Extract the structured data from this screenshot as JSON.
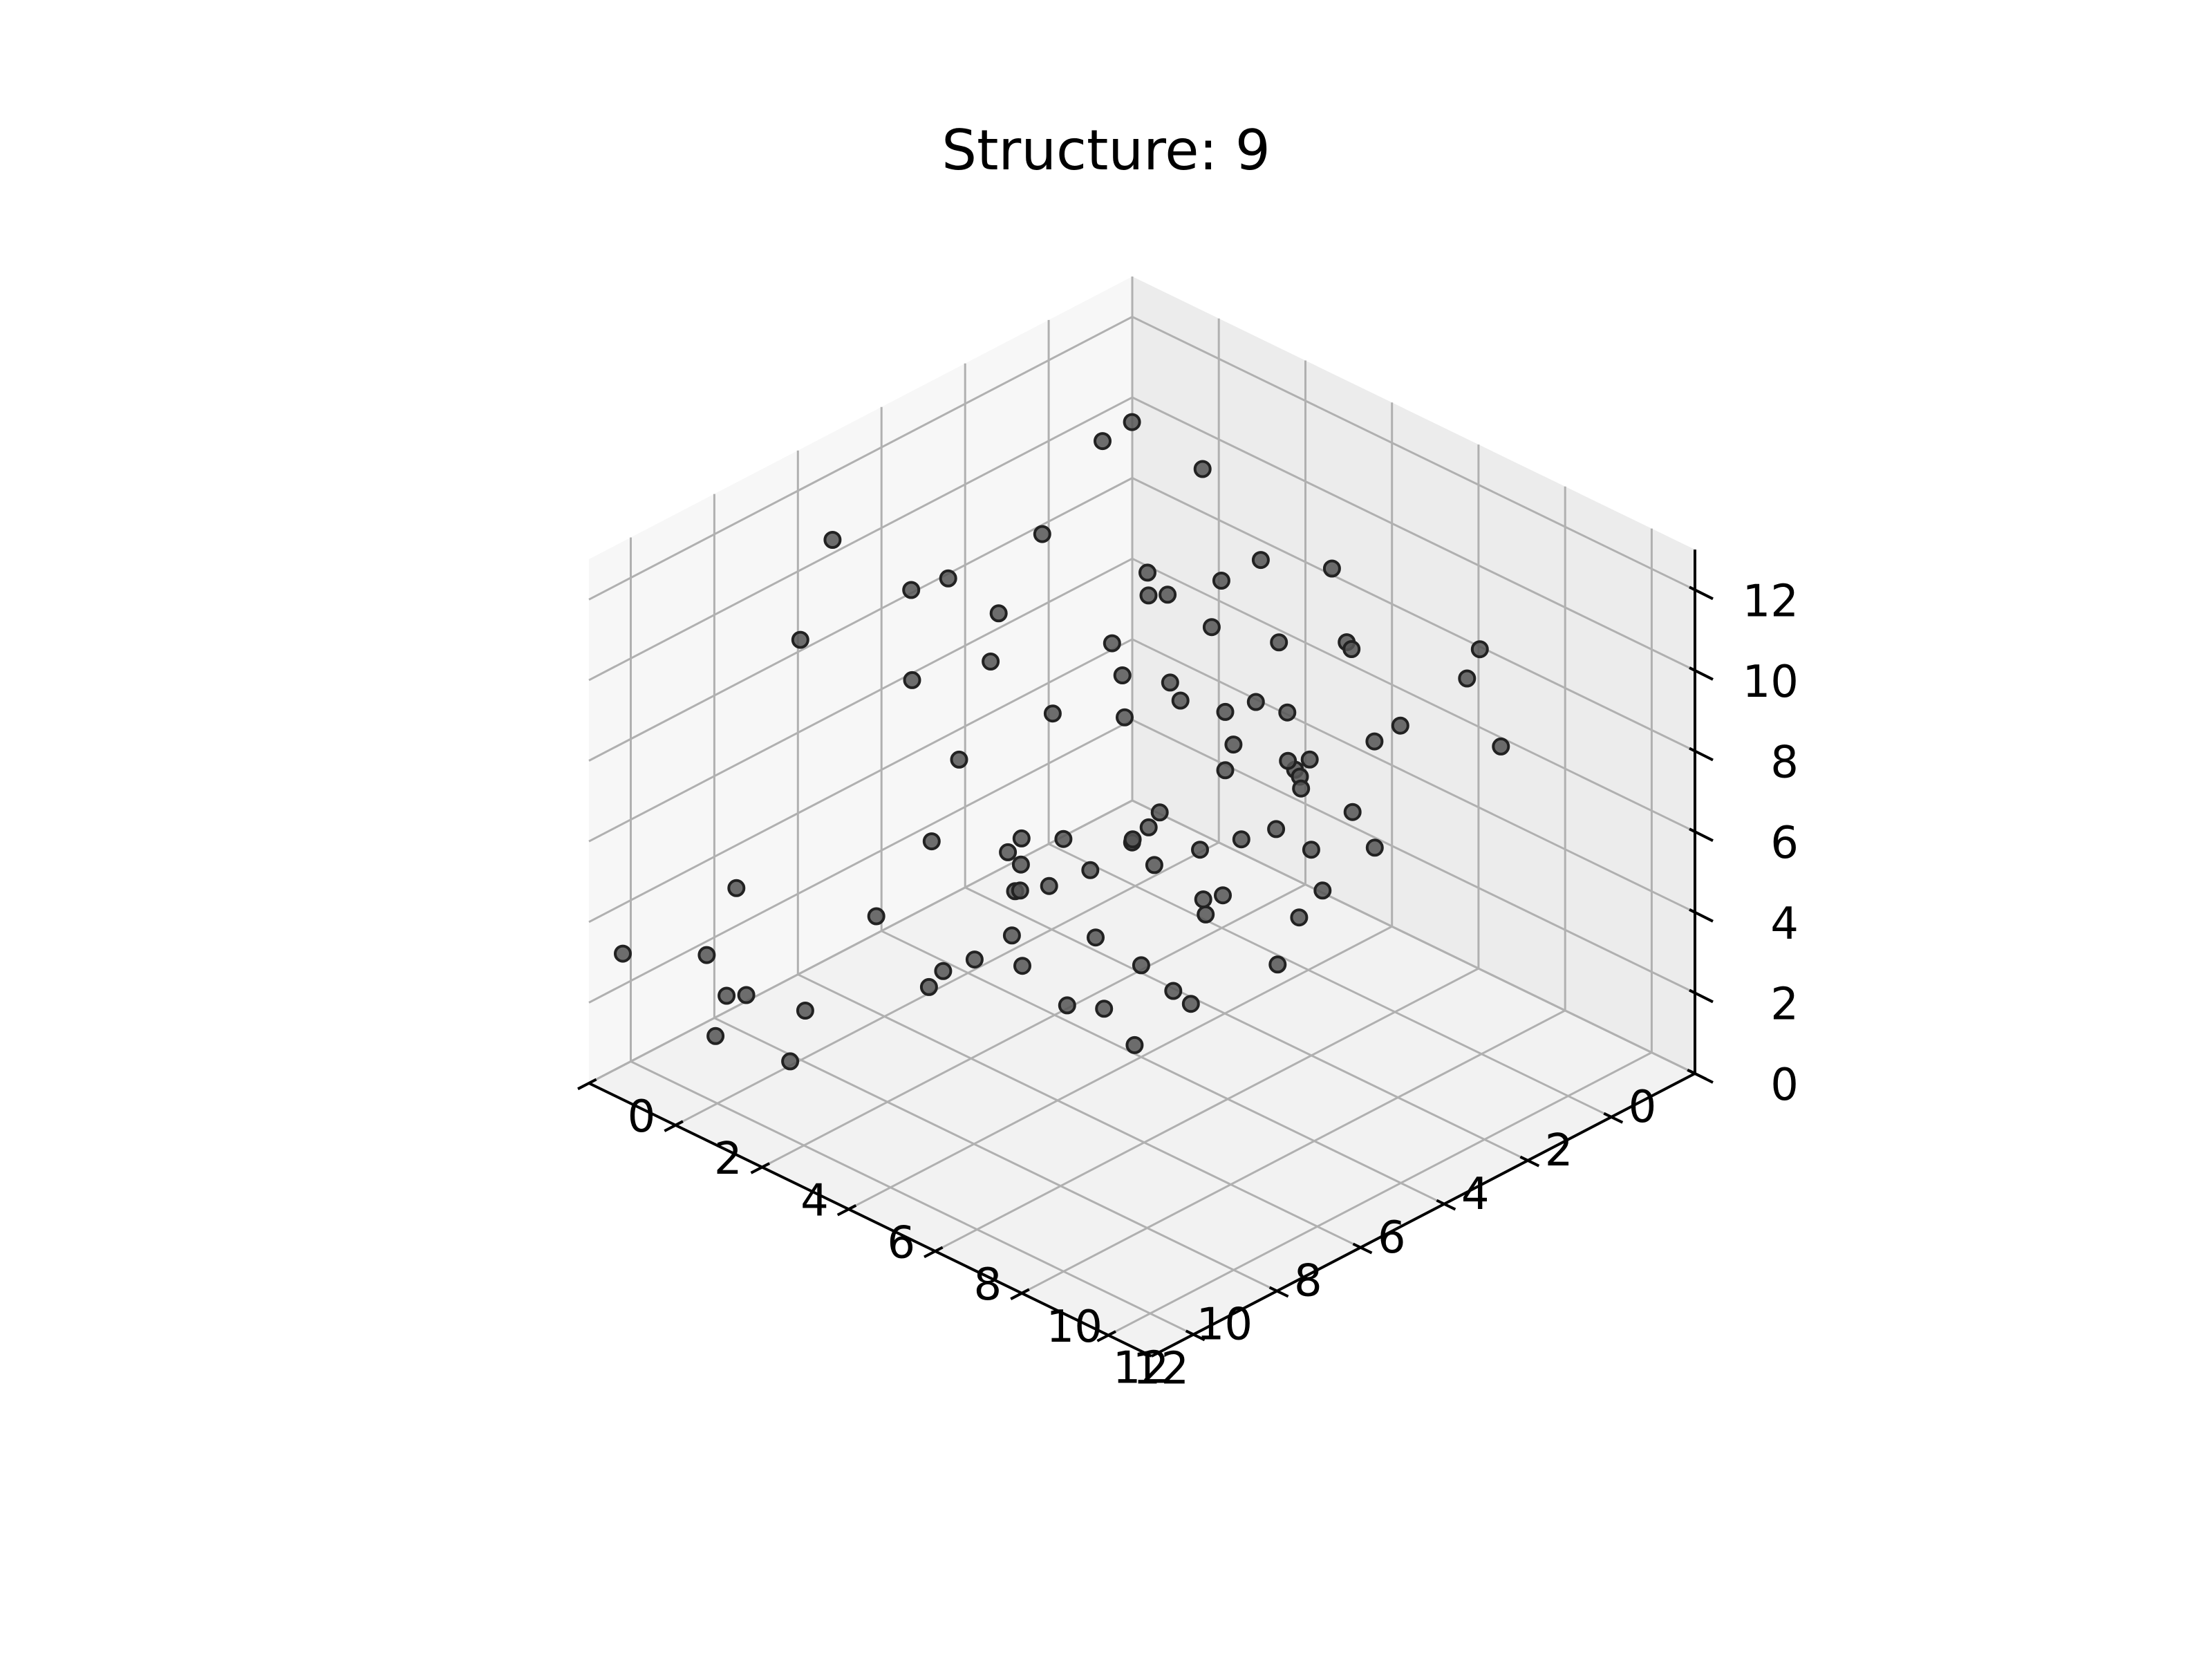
{
  "chart_data": {
    "type": "scatter3d",
    "title": "Structure: 9",
    "xlabel": "",
    "ylabel": "",
    "zlabel": "",
    "xlim": [
      0,
      13
    ],
    "ylim": [
      0,
      13
    ],
    "zlim": [
      0,
      13
    ],
    "xticks": [
      0,
      2,
      4,
      6,
      8,
      10,
      12
    ],
    "yticks": [
      0,
      2,
      4,
      6,
      8,
      10,
      12
    ],
    "zticks": [
      0,
      2,
      4,
      6,
      8,
      10,
      12
    ],
    "grid": true,
    "view": {
      "elev": 30,
      "azim": 45
    },
    "marker_color": "#555555",
    "points": [
      [
        0.7,
        0.5,
        2.7
      ],
      [
        1.0,
        0.5,
        4.7
      ],
      [
        10.3,
        0.8,
        3.8
      ],
      [
        10.7,
        0.5,
        2.2
      ],
      [
        6.2,
        0.9,
        6.8
      ],
      [
        10.8,
        0.8,
        0.4
      ],
      [
        5.6,
        0.3,
        8.4
      ],
      [
        12.5,
        0.3,
        3.1
      ],
      [
        1.5,
        1.8,
        7.4
      ],
      [
        1.0,
        2.8,
        6.3
      ],
      [
        2.7,
        2.6,
        12.2
      ],
      [
        8.0,
        0.8,
        11.2
      ],
      [
        7.2,
        2.7,
        10.8
      ],
      [
        3.3,
        2.5,
        12.0
      ],
      [
        9.6,
        1.6,
        10.0
      ],
      [
        6.4,
        4.1,
        12.2
      ],
      [
        1.6,
        4.4,
        5.6
      ],
      [
        3.3,
        4.3,
        6.5
      ],
      [
        3.2,
        3.6,
        2.0
      ],
      [
        5.2,
        3.1,
        2.3
      ],
      [
        11.1,
        1.8,
        2.1
      ],
      [
        8.8,
        3.8,
        2.1
      ],
      [
        7.6,
        4.8,
        2.5
      ],
      [
        8.5,
        5.5,
        5.2
      ],
      [
        11.5,
        3.2,
        1.4
      ],
      [
        12.4,
        2.6,
        3.2
      ],
      [
        9.6,
        4.9,
        3.5
      ],
      [
        12.9,
        4.9,
        4.3
      ],
      [
        8.6,
        6.8,
        3.1
      ],
      [
        9.3,
        6.2,
        4.9
      ],
      [
        3.9,
        7.9,
        5.0
      ],
      [
        2.8,
        8.3,
        7.3
      ],
      [
        4.5,
        8.2,
        3.8
      ],
      [
        3.5,
        5.9,
        4.0
      ],
      [
        3.9,
        4.4,
        4.1
      ],
      [
        7.0,
        8.4,
        5.7
      ],
      [
        3.3,
        7.8,
        11.6
      ],
      [
        4.5,
        9.3,
        11.2
      ],
      [
        1.0,
        8.7,
        8.1
      ],
      [
        2.7,
        8.8,
        7.9
      ],
      [
        5.7,
        9.9,
        6.0
      ],
      [
        6.5,
        9.6,
        7.8
      ],
      [
        3.8,
        11.7,
        11.9
      ],
      [
        4.8,
        9.7,
        11.4
      ],
      [
        0.5,
        9.0,
        6.3
      ],
      [
        10.1,
        10.7,
        6.3
      ],
      [
        5.7,
        9.1,
        8.8
      ],
      [
        7.5,
        10.6,
        5.5
      ],
      [
        5.9,
        11.3,
        7.9
      ],
      [
        10.3,
        9.1,
        6.9
      ],
      [
        8.9,
        8.8,
        5.3
      ],
      [
        5.0,
        4.6,
        8.2
      ],
      [
        10.3,
        10.0,
        4.7
      ],
      [
        8.5,
        10.3,
        7.6
      ],
      [
        10.3,
        11.3,
        6.4
      ],
      [
        5.1,
        5.3,
        10.6
      ],
      [
        8.2,
        11.5,
        12.6
      ],
      [
        10.1,
        11.9,
        12.4
      ],
      [
        8.7,
        12.3,
        11.4
      ],
      [
        11.0,
        11.0,
        11.0
      ],
      [
        12.5,
        11.1,
        10.8
      ],
      [
        5.8,
        9.7,
        9.2
      ],
      [
        6.9,
        9.0,
        9.8
      ],
      [
        12.4,
        9.4,
        10.0
      ],
      [
        5.1,
        5.8,
        8.7
      ],
      [
        6.2,
        2.9,
        9.5
      ],
      [
        2.0,
        4.9,
        9.6
      ],
      [
        4.7,
        2.7,
        6.1
      ],
      [
        2.1,
        5.9,
        4.8
      ],
      [
        1.8,
        5.5,
        4.6
      ],
      [
        4.1,
        1.4,
        2.0
      ],
      [
        5.7,
        5.5,
        4.9
      ],
      [
        8.7,
        4.4,
        8.0
      ],
      [
        9.0,
        7.1,
        7.6
      ],
      [
        5.5,
        10.4,
        8.1
      ],
      [
        4.3,
        6.3,
        7.8
      ],
      [
        4.8,
        6.2,
        4.6
      ],
      [
        6.6,
        3.5,
        4.1
      ],
      [
        0.7,
        2.3,
        9.8
      ],
      [
        2.6,
        5.9,
        8.4
      ],
      [
        1.7,
        3.7,
        8.3
      ],
      [
        5.7,
        7.2,
        4.0
      ],
      [
        7.7,
        2.8,
        4.6
      ],
      [
        8.3,
        2.1,
        2.7
      ],
      [
        9.0,
        6.1,
        5.8
      ],
      [
        3.7,
        0.3,
        5.6
      ],
      [
        6.3,
        6.9,
        12.1
      ],
      [
        10.4,
        6.4,
        5.0
      ],
      [
        7.2,
        6.3,
        2.0
      ],
      [
        6.1,
        5.9,
        5.4
      ]
    ]
  }
}
